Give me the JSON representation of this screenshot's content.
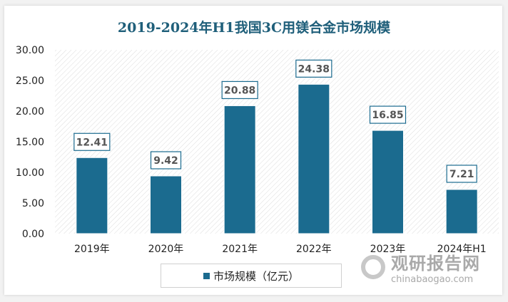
{
  "chart_data": {
    "type": "bar",
    "title": "2019-2024年H1我国3C用镁合金市场规模",
    "categories": [
      "2019年",
      "2020年",
      "2021年",
      "2022年",
      "2023年",
      "2024年H1"
    ],
    "series": [
      {
        "name": "市场规模（亿元）",
        "values": [
          12.41,
          9.42,
          20.88,
          24.38,
          16.85,
          7.21
        ],
        "color": "#1b6b8f"
      }
    ],
    "data_labels": [
      "12.41",
      "9.42",
      "20.88",
      "24.38",
      "16.85",
      "7.21"
    ],
    "yticks": [
      "0.00",
      "5.00",
      "10.00",
      "15.00",
      "20.00",
      "25.00",
      "30.00"
    ],
    "ylim": [
      0,
      30
    ],
    "legend": "bottom",
    "xlabel": "",
    "ylabel": ""
  },
  "watermark": {
    "cn": "观研报告网",
    "en": "chinabaogao.com"
  }
}
